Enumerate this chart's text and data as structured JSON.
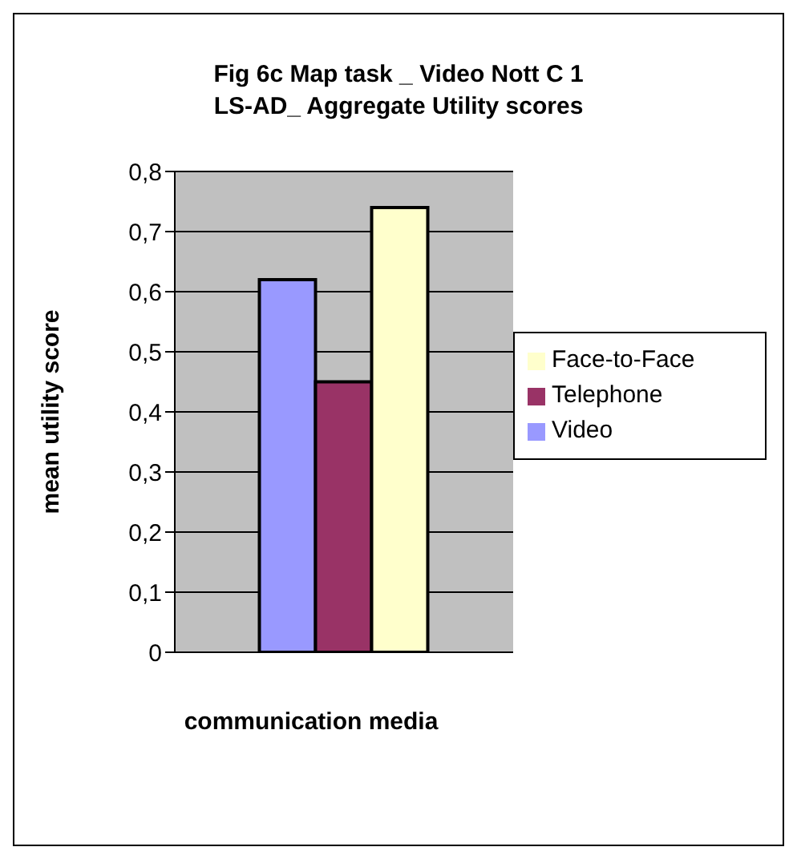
{
  "chart_data": {
    "type": "bar",
    "title": "Fig 6c Map task _ Video Nott C 1\nLS-AD_ Aggregate Utility scores",
    "xlabel": "communication media",
    "ylabel": "mean utility score",
    "categories": [
      null
    ],
    "series": [
      {
        "name": "Video",
        "color": "#9999ff",
        "values": [
          0.62
        ]
      },
      {
        "name": "Telephone",
        "color": "#993366",
        "values": [
          0.45
        ]
      },
      {
        "name": "Face-to-Face",
        "color": "#ffffcc",
        "values": [
          0.74
        ]
      }
    ],
    "ylim": [
      0,
      0.8
    ],
    "yticks": [
      {
        "value": 0,
        "label": "0"
      },
      {
        "value": 0.1,
        "label": "0,1"
      },
      {
        "value": 0.2,
        "label": "0,2"
      },
      {
        "value": 0.3,
        "label": "0,3"
      },
      {
        "value": 0.4,
        "label": "0,4"
      },
      {
        "value": 0.5,
        "label": "0,5"
      },
      {
        "value": 0.6,
        "label": "0,6"
      },
      {
        "value": 0.7,
        "label": "0,7"
      },
      {
        "value": 0.8,
        "label": "0,8"
      }
    ],
    "grid": "y",
    "legend": "right"
  }
}
